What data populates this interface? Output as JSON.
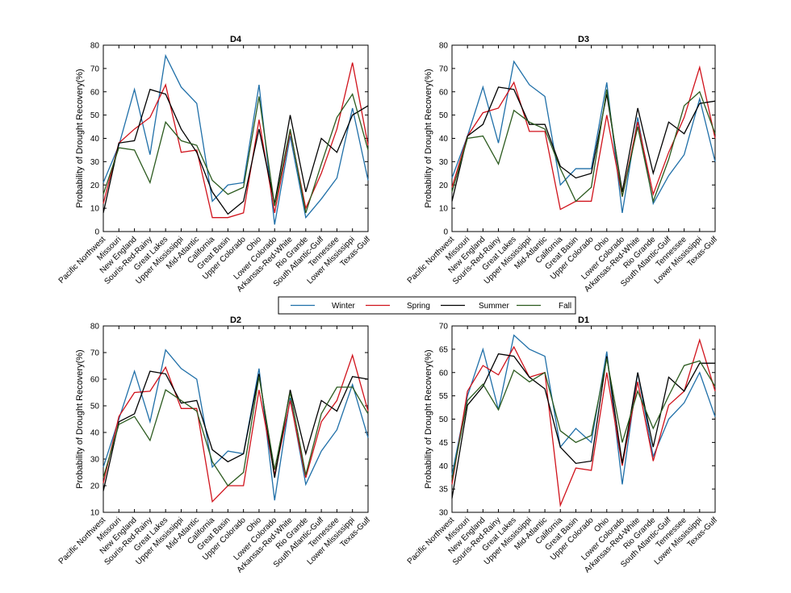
{
  "colors": {
    "Winter": "#1f6fa8",
    "Spring": "#d0121b",
    "Summer": "#000000",
    "Fall": "#2b5a1e"
  },
  "legend": {
    "items": [
      "Winter",
      "Spring",
      "Summer",
      "Fall"
    ]
  },
  "chart_data": [
    {
      "type": "line",
      "title": "D4",
      "ylabel": "Probability of Drought Recovery(%)",
      "ylim": [
        0,
        80
      ],
      "yticks": [
        0,
        10,
        20,
        30,
        40,
        50,
        60,
        70,
        80
      ],
      "categories": [
        "Pacific Northwest",
        "Missouri",
        "New England",
        "Souris-Red-Rainy",
        "Great Lakes",
        "Upper Mississippi",
        "Mid-Atlantic",
        "California",
        "Great Basin",
        "Upper Colorado",
        "Ohio",
        "Lower Colorado",
        "Arkansas-Red-White",
        "Rio Grande",
        "South Atlantic-Gulf",
        "Tennessee",
        "Lower Mississippi",
        "Texas-Gulf"
      ],
      "series": [
        {
          "name": "Winter",
          "values": [
            21,
            37,
            61,
            33,
            75.5,
            62,
            55,
            13,
            20,
            21,
            63,
            3,
            41,
            6,
            14,
            23,
            53,
            22
          ]
        },
        {
          "name": "Spring",
          "values": [
            12,
            38,
            44,
            49,
            63,
            34,
            35,
            6,
            6,
            8,
            48,
            8,
            43,
            10,
            25,
            44,
            72.5,
            37
          ]
        },
        {
          "name": "Summer",
          "values": [
            8,
            38,
            39,
            61,
            59,
            44,
            34,
            17,
            7.5,
            13,
            44,
            12,
            50,
            17,
            40,
            34,
            50,
            54
          ]
        },
        {
          "name": "Fall",
          "values": [
            16,
            36,
            35,
            21,
            47,
            39,
            37,
            22,
            16,
            19,
            58,
            11,
            44,
            8,
            29,
            49,
            59,
            35
          ]
        }
      ]
    },
    {
      "type": "line",
      "title": "D3",
      "ylabel": "Probability of Drought Recovery(%)",
      "ylim": [
        0,
        80
      ],
      "yticks": [
        0,
        10,
        20,
        30,
        40,
        50,
        60,
        70,
        80
      ],
      "categories": [
        "Pacific Northwest",
        "Missouri",
        "New England",
        "Souris-Red-Rainy",
        "Great Lakes",
        "Upper Mississippi",
        "Mid-Atlantic",
        "California",
        "Great Basin",
        "Upper Colorado",
        "Ohio",
        "Lower Colorado",
        "Arkansas-Red-White",
        "Rio Grande",
        "South Atlantic-Gulf",
        "Tennessee",
        "Lower Mississippi",
        "Texas-Gulf"
      ],
      "series": [
        {
          "name": "Winter",
          "values": [
            23,
            41,
            62,
            38,
            73,
            63,
            58,
            20,
            27,
            27,
            64,
            8,
            49,
            12,
            24,
            33,
            57,
            30
          ]
        },
        {
          "name": "Spring",
          "values": [
            19,
            41,
            51,
            53,
            64,
            43,
            43,
            9.5,
            13,
            13,
            50,
            15,
            47,
            16,
            34,
            49,
            70.5,
            40
          ]
        },
        {
          "name": "Summer",
          "values": [
            13,
            41,
            46,
            62,
            61,
            46,
            46,
            28,
            23,
            25,
            59,
            17,
            53,
            25,
            47,
            42,
            55,
            56
          ]
        },
        {
          "name": "Fall",
          "values": [
            17,
            40,
            41,
            29,
            52,
            47,
            44,
            27,
            13,
            19,
            61,
            15,
            45,
            13,
            31,
            54,
            60,
            42
          ]
        }
      ]
    },
    {
      "type": "line",
      "title": "D2",
      "ylabel": "Probability of Drought Recovery(%)",
      "ylim": [
        10,
        80
      ],
      "yticks": [
        10,
        20,
        30,
        40,
        50,
        60,
        70,
        80
      ],
      "categories": [
        "Pacific Northwest",
        "Missouri",
        "New England",
        "Souris-Red-Rainy",
        "Great Lakes",
        "Upper Mississippi",
        "Mid-Atlantic",
        "California",
        "Great Basin",
        "Upper Colorado",
        "Ohio",
        "Lower Colorado",
        "Arkansas-Red-White",
        "Rio Grande",
        "South Atlantic-Gulf",
        "Tennessee",
        "Lower Mississippi",
        "Texas-Gulf"
      ],
      "series": [
        {
          "name": "Winter",
          "values": [
            27,
            45,
            63,
            44,
            71,
            64,
            60,
            27,
            33,
            32,
            64,
            14.5,
            53,
            20.5,
            33,
            41,
            58,
            38
          ]
        },
        {
          "name": "Spring",
          "values": [
            21,
            46,
            55,
            55.5,
            64.5,
            49,
            49,
            14,
            20,
            20,
            56,
            24,
            52,
            23,
            44,
            52,
            69,
            48
          ]
        },
        {
          "name": "Summer",
          "values": [
            18,
            44,
            47,
            63,
            62,
            51,
            52,
            33.5,
            29,
            32,
            62,
            23,
            56,
            32,
            52,
            48,
            61,
            60
          ]
        },
        {
          "name": "Fall",
          "values": [
            23,
            43,
            46,
            37,
            56,
            52,
            48,
            29,
            20,
            25,
            61,
            26,
            55,
            24,
            47,
            57,
            57,
            47
          ]
        }
      ]
    },
    {
      "type": "line",
      "title": "D1",
      "ylabel": "Probability of Drought Recovery(%)",
      "ylim": [
        30,
        70
      ],
      "yticks": [
        30,
        35,
        40,
        45,
        50,
        55,
        60,
        65,
        70
      ],
      "categories": [
        "Pacific Northwest",
        "Missouri",
        "New England",
        "Souris-Red-Rainy",
        "Great Lakes",
        "Upper Mississippi",
        "Mid-Atlantic",
        "California",
        "Great Basin",
        "Upper Colorado",
        "Ohio",
        "Lower Colorado",
        "Arkansas-Red-White",
        "Rio Grande",
        "South Atlantic-Gulf",
        "Tennessee",
        "Lower Mississippi",
        "Texas-Gulf"
      ],
      "series": [
        {
          "name": "Winter",
          "values": [
            38,
            55,
            65,
            52,
            68,
            65,
            63.5,
            44,
            48,
            45,
            64.5,
            36,
            60,
            42,
            50,
            53.5,
            60,
            50.5
          ]
        },
        {
          "name": "Spring",
          "values": [
            36,
            56,
            61.5,
            59.5,
            65.5,
            59,
            60,
            31.5,
            39.5,
            39,
            60,
            40,
            58,
            41,
            53,
            56,
            67,
            56
          ]
        },
        {
          "name": "Summer",
          "values": [
            33,
            53,
            57,
            64,
            63.5,
            59,
            56.5,
            44,
            40.5,
            41,
            63.5,
            40.5,
            60,
            44,
            59,
            56,
            62,
            62
          ]
        },
        {
          "name": "Fall",
          "values": [
            37,
            54,
            57.5,
            52,
            60.5,
            58,
            60,
            47.5,
            45,
            46.5,
            63,
            45,
            56,
            48,
            55,
            61.5,
            62.5,
            57
          ]
        }
      ]
    }
  ]
}
